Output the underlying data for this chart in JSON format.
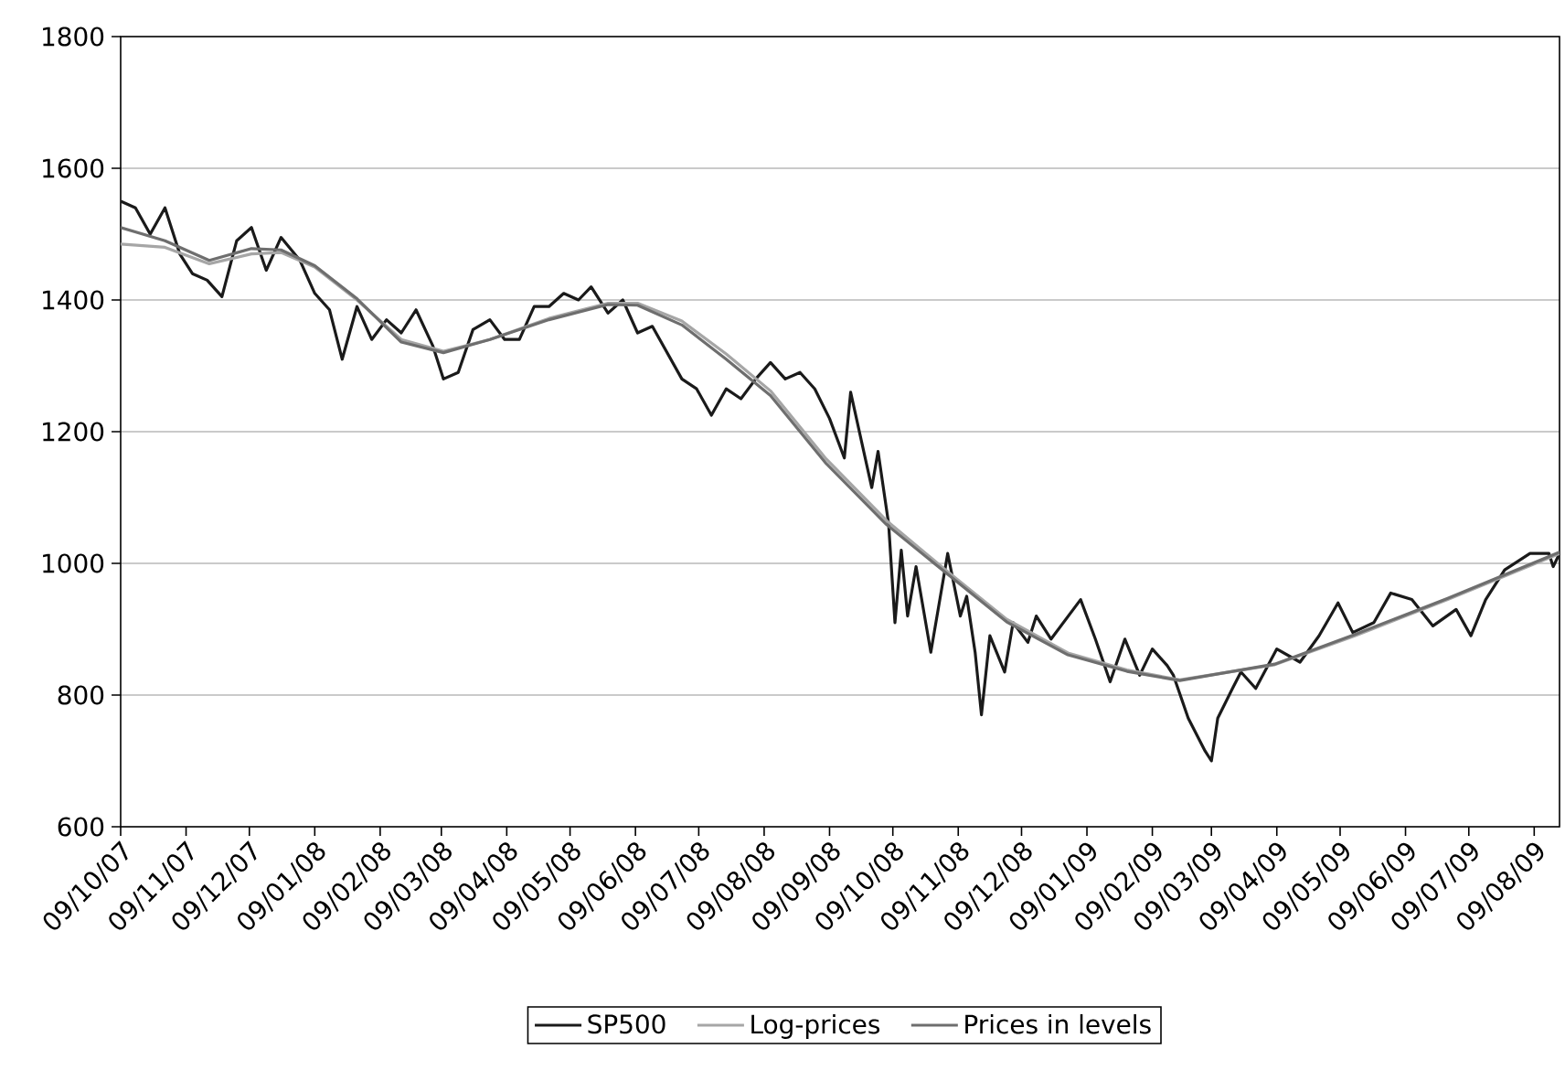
{
  "chart_data": {
    "type": "line",
    "grid": "y",
    "legend": "bottom",
    "xlim": [
      "2007-10-09",
      "2009-08-21"
    ],
    "ylim": [
      600,
      1800
    ],
    "yticks": [
      600,
      800,
      1000,
      1200,
      1400,
      1600,
      1800
    ],
    "xticks": [
      {
        "value": "2007-10-09",
        "label": "09/10/07"
      },
      {
        "value": "2007-11-09",
        "label": "09/11/07"
      },
      {
        "value": "2007-12-09",
        "label": "09/12/07"
      },
      {
        "value": "2008-01-09",
        "label": "09/01/08"
      },
      {
        "value": "2008-02-09",
        "label": "09/02/08"
      },
      {
        "value": "2008-03-09",
        "label": "09/03/08"
      },
      {
        "value": "2008-04-09",
        "label": "09/04/08"
      },
      {
        "value": "2008-05-09",
        "label": "09/05/08"
      },
      {
        "value": "2008-06-09",
        "label": "09/06/08"
      },
      {
        "value": "2008-07-09",
        "label": "09/07/08"
      },
      {
        "value": "2008-08-09",
        "label": "09/08/08"
      },
      {
        "value": "2008-09-09",
        "label": "09/09/08"
      },
      {
        "value": "2008-10-09",
        "label": "09/10/08"
      },
      {
        "value": "2008-11-09",
        "label": "09/11/08"
      },
      {
        "value": "2008-12-09",
        "label": "09/12/08"
      },
      {
        "value": "2009-01-09",
        "label": "09/01/09"
      },
      {
        "value": "2009-02-09",
        "label": "09/02/09"
      },
      {
        "value": "2009-03-09",
        "label": "09/03/09"
      },
      {
        "value": "2009-04-09",
        "label": "09/04/09"
      },
      {
        "value": "2009-05-09",
        "label": "09/05/09"
      },
      {
        "value": "2009-06-09",
        "label": "09/06/09"
      },
      {
        "value": "2009-07-09",
        "label": "09/07/09"
      },
      {
        "value": "2009-08-09",
        "label": "09/08/09"
      }
    ],
    "series": [
      {
        "name": "SP500",
        "color": "#1a1a1a",
        "x": [
          "2007-10-09",
          "2007-10-16",
          "2007-10-23",
          "2007-10-30",
          "2007-11-06",
          "2007-11-12",
          "2007-11-19",
          "2007-11-26",
          "2007-12-03",
          "2007-12-10",
          "2007-12-17",
          "2007-12-24",
          "2008-01-02",
          "2008-01-09",
          "2008-01-16",
          "2008-01-22",
          "2008-01-29",
          "2008-02-05",
          "2008-02-12",
          "2008-02-19",
          "2008-02-26",
          "2008-03-05",
          "2008-03-10",
          "2008-03-17",
          "2008-03-24",
          "2008-04-01",
          "2008-04-08",
          "2008-04-15",
          "2008-04-22",
          "2008-04-29",
          "2008-05-06",
          "2008-05-13",
          "2008-05-19",
          "2008-05-27",
          "2008-06-03",
          "2008-06-10",
          "2008-06-17",
          "2008-06-24",
          "2008-07-01",
          "2008-07-08",
          "2008-07-15",
          "2008-07-22",
          "2008-07-29",
          "2008-08-05",
          "2008-08-12",
          "2008-08-19",
          "2008-08-26",
          "2008-09-02",
          "2008-09-09",
          "2008-09-16",
          "2008-09-19",
          "2008-09-29",
          "2008-10-02",
          "2008-10-07",
          "2008-10-10",
          "2008-10-13",
          "2008-10-16",
          "2008-10-20",
          "2008-10-27",
          "2008-11-04",
          "2008-11-10",
          "2008-11-13",
          "2008-11-17",
          "2008-11-20",
          "2008-11-24",
          "2008-12-01",
          "2008-12-05",
          "2008-12-12",
          "2008-12-16",
          "2008-12-23",
          "2009-01-06",
          "2009-01-13",
          "2009-01-20",
          "2009-01-27",
          "2009-02-03",
          "2009-02-09",
          "2009-02-16",
          "2009-02-19",
          "2009-02-26",
          "2009-03-06",
          "2009-03-09",
          "2009-03-12",
          "2009-03-19",
          "2009-03-23",
          "2009-03-30",
          "2009-04-09",
          "2009-04-20",
          "2009-04-29",
          "2009-05-08",
          "2009-05-15",
          "2009-05-25",
          "2009-06-02",
          "2009-06-12",
          "2009-06-22",
          "2009-07-03",
          "2009-07-10",
          "2009-07-17",
          "2009-07-26",
          "2009-08-07",
          "2009-08-16",
          "2009-08-18",
          "2009-08-21"
        ],
        "values": [
          1550,
          1540,
          1500,
          1540,
          1470,
          1440,
          1430,
          1405,
          1490,
          1510,
          1445,
          1495,
          1460,
          1410,
          1385,
          1310,
          1390,
          1340,
          1370,
          1350,
          1385,
          1330,
          1280,
          1290,
          1355,
          1370,
          1340,
          1340,
          1390,
          1390,
          1410,
          1400,
          1420,
          1380,
          1400,
          1350,
          1360,
          1320,
          1280,
          1265,
          1225,
          1265,
          1250,
          1280,
          1305,
          1280,
          1290,
          1265,
          1220,
          1160,
          1260,
          1115,
          1170,
          1060,
          910,
          1020,
          920,
          995,
          865,
          1015,
          920,
          950,
          865,
          770,
          890,
          835,
          910,
          880,
          920,
          885,
          945,
          885,
          820,
          885,
          830,
          870,
          845,
          830,
          765,
          715,
          700,
          765,
          810,
          835,
          810,
          870,
          850,
          890,
          940,
          895,
          910,
          955,
          945,
          905,
          930,
          890,
          945,
          990,
          1015,
          1015,
          995,
          1015
        ]
      },
      {
        "name": "Log-prices",
        "color": "#a6a6a6",
        "x": [
          "2007-10-09",
          "2007-10-30",
          "2007-11-20",
          "2007-12-10",
          "2007-12-24",
          "2008-01-09",
          "2008-01-29",
          "2008-02-19",
          "2008-03-10",
          "2008-04-01",
          "2008-04-29",
          "2008-05-27",
          "2008-06-10",
          "2008-07-01",
          "2008-07-22",
          "2008-08-12",
          "2008-09-07",
          "2008-10-06",
          "2008-11-03",
          "2008-12-02",
          "2008-12-31",
          "2009-01-28",
          "2009-02-22",
          "2009-04-08",
          "2009-05-16",
          "2009-06-29",
          "2009-08-21"
        ],
        "values": [
          1485,
          1480,
          1455,
          1470,
          1472,
          1450,
          1400,
          1340,
          1322,
          1340,
          1372,
          1395,
          1395,
          1368,
          1318,
          1262,
          1160,
          1065,
          990,
          915,
          864,
          838,
          823,
          846,
          890,
          945,
          1015
        ]
      },
      {
        "name": "Prices in levels",
        "color": "#6e6e6e",
        "x": [
          "2007-10-09",
          "2007-10-30",
          "2007-11-20",
          "2007-12-10",
          "2007-12-24",
          "2008-01-09",
          "2008-01-29",
          "2008-02-19",
          "2008-03-10",
          "2008-04-01",
          "2008-04-29",
          "2008-05-27",
          "2008-06-10",
          "2008-07-01",
          "2008-07-22",
          "2008-08-12",
          "2008-09-07",
          "2008-10-06",
          "2008-11-03",
          "2008-12-02",
          "2008-12-31",
          "2009-01-28",
          "2009-02-22",
          "2009-04-08",
          "2009-05-16",
          "2009-06-29",
          "2009-08-21"
        ],
        "values": [
          1510,
          1490,
          1460,
          1478,
          1476,
          1452,
          1402,
          1336,
          1320,
          1340,
          1370,
          1393,
          1392,
          1362,
          1310,
          1255,
          1153,
          1059,
          986,
          911,
          861,
          836,
          822,
          847,
          892,
          947,
          1017
        ]
      }
    ]
  }
}
